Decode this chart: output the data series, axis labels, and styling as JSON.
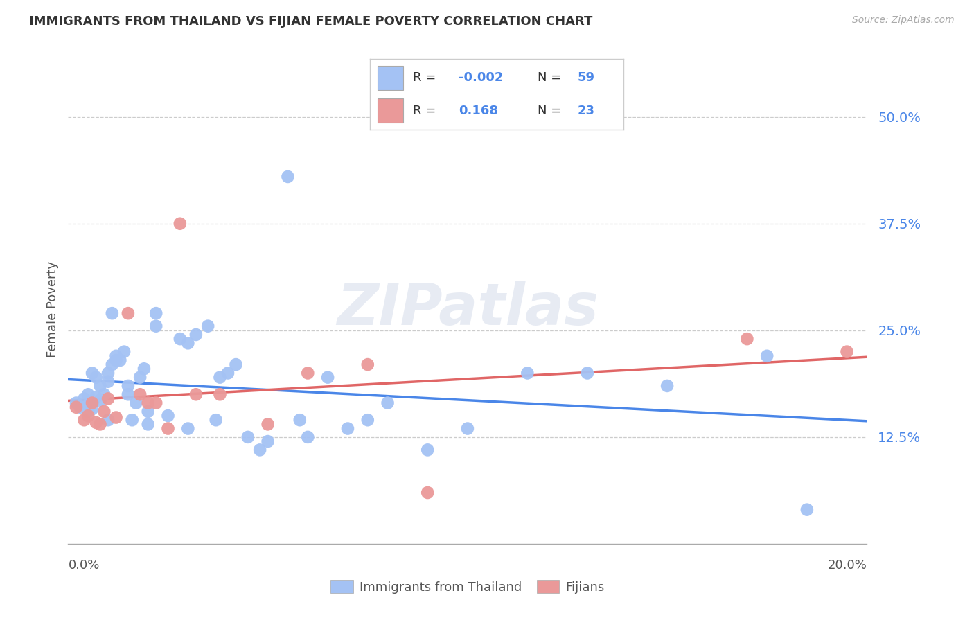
{
  "title": "IMMIGRANTS FROM THAILAND VS FIJIAN FEMALE POVERTY CORRELATION CHART",
  "source": "Source: ZipAtlas.com",
  "ylabel": "Female Poverty",
  "ytick_labels": [
    "12.5%",
    "25.0%",
    "37.5%",
    "50.0%"
  ],
  "ytick_values": [
    0.125,
    0.25,
    0.375,
    0.5
  ],
  "xlim": [
    0.0,
    0.2
  ],
  "ylim": [
    0.0,
    0.55
  ],
  "legend_label1": "Immigrants from Thailand",
  "legend_label2": "Fijians",
  "r1": "-0.002",
  "n1": "59",
  "r2": "0.168",
  "n2": "23",
  "color_blue": "#a4c2f4",
  "color_pink": "#ea9999",
  "color_blue_dark": "#4a86e8",
  "color_pink_dark": "#e06666",
  "color_text_blue": "#4a86e8",
  "watermark": "ZIPatlas",
  "blue_dots_x": [
    0.002,
    0.003,
    0.004,
    0.005,
    0.005,
    0.005,
    0.006,
    0.006,
    0.007,
    0.007,
    0.008,
    0.008,
    0.009,
    0.01,
    0.01,
    0.01,
    0.011,
    0.011,
    0.012,
    0.012,
    0.013,
    0.014,
    0.015,
    0.015,
    0.016,
    0.017,
    0.018,
    0.019,
    0.02,
    0.02,
    0.022,
    0.022,
    0.025,
    0.028,
    0.03,
    0.03,
    0.032,
    0.035,
    0.037,
    0.038,
    0.04,
    0.042,
    0.045,
    0.048,
    0.05,
    0.055,
    0.058,
    0.06,
    0.065,
    0.07,
    0.075,
    0.08,
    0.09,
    0.1,
    0.115,
    0.13,
    0.15,
    0.175,
    0.185
  ],
  "blue_dots_y": [
    0.165,
    0.16,
    0.17,
    0.175,
    0.155,
    0.162,
    0.158,
    0.2,
    0.195,
    0.172,
    0.168,
    0.185,
    0.175,
    0.145,
    0.19,
    0.2,
    0.21,
    0.27,
    0.215,
    0.22,
    0.215,
    0.225,
    0.175,
    0.185,
    0.145,
    0.165,
    0.195,
    0.205,
    0.155,
    0.14,
    0.27,
    0.255,
    0.15,
    0.24,
    0.235,
    0.135,
    0.245,
    0.255,
    0.145,
    0.195,
    0.2,
    0.21,
    0.125,
    0.11,
    0.12,
    0.43,
    0.145,
    0.125,
    0.195,
    0.135,
    0.145,
    0.165,
    0.11,
    0.135,
    0.2,
    0.2,
    0.185,
    0.22,
    0.04
  ],
  "pink_dots_x": [
    0.002,
    0.004,
    0.005,
    0.006,
    0.007,
    0.008,
    0.009,
    0.01,
    0.012,
    0.015,
    0.018,
    0.02,
    0.022,
    0.025,
    0.028,
    0.032,
    0.038,
    0.05,
    0.06,
    0.075,
    0.09,
    0.17,
    0.195
  ],
  "pink_dots_y": [
    0.16,
    0.145,
    0.15,
    0.165,
    0.142,
    0.14,
    0.155,
    0.17,
    0.148,
    0.27,
    0.175,
    0.165,
    0.165,
    0.135,
    0.375,
    0.175,
    0.175,
    0.14,
    0.2,
    0.21,
    0.06,
    0.24,
    0.225
  ]
}
